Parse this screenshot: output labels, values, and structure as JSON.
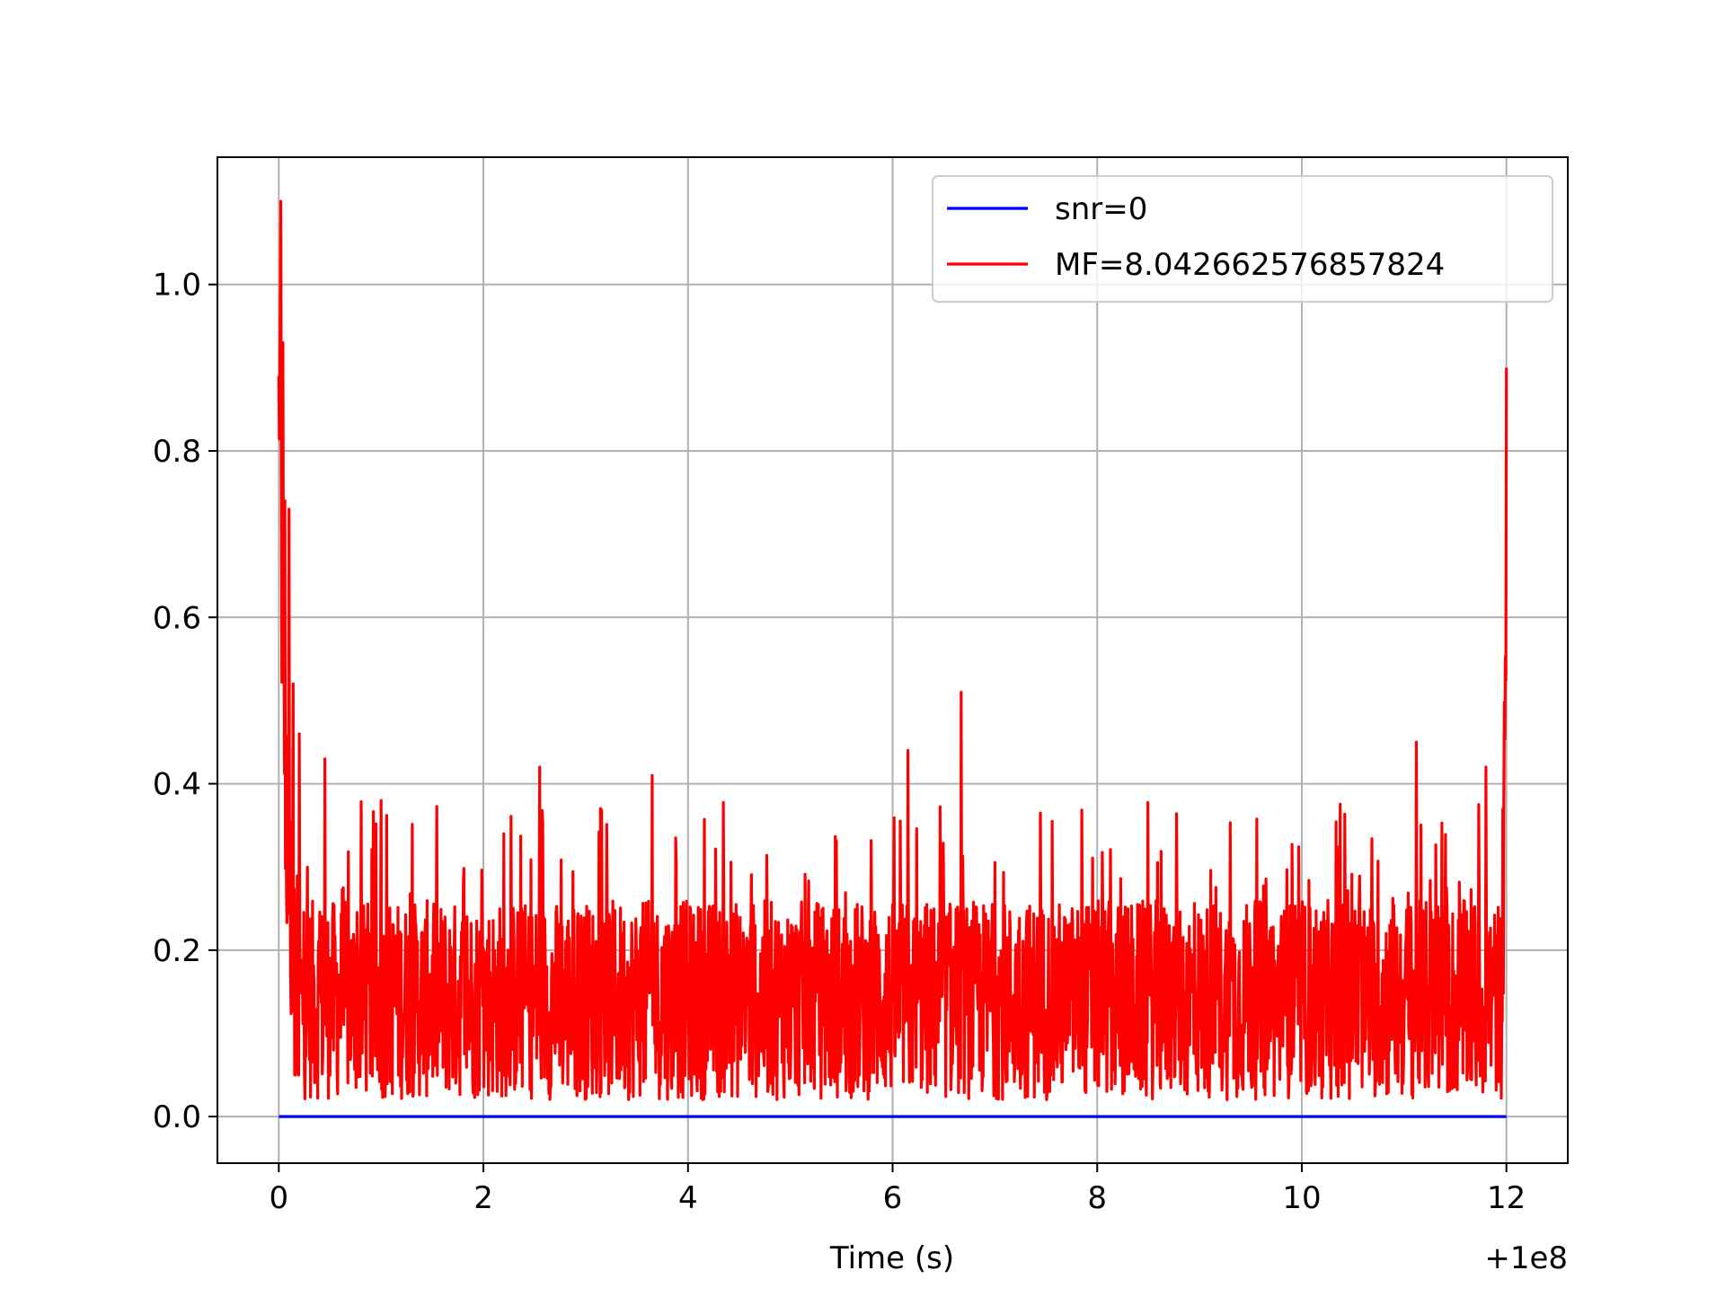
{
  "chart_data": {
    "type": "line",
    "title": "",
    "xlabel": "Time (s)",
    "ylabel": "",
    "x_offset_label": "+1e8",
    "xlim": [
      -0.6,
      12.6
    ],
    "ylim": [
      -0.056,
      1.153
    ],
    "xticks": [
      0,
      2,
      4,
      6,
      8,
      10,
      12
    ],
    "xtick_labels": [
      "0",
      "2",
      "4",
      "6",
      "8",
      "10",
      "12"
    ],
    "yticks": [
      0.0,
      0.2,
      0.4,
      0.6,
      0.8,
      1.0
    ],
    "ytick_labels": [
      "0.0",
      "0.2",
      "0.4",
      "0.6",
      "0.8",
      "1.0"
    ],
    "grid": true,
    "legend_position": "top-right",
    "series": [
      {
        "name": "snr=0",
        "color": "#0000ff",
        "x": [
          0,
          12
        ],
        "y": [
          0,
          0
        ]
      },
      {
        "name": "MF=8.042662576857824",
        "color": "#ff0000",
        "description_peaks": {
          "x": [
            0.0,
            0.02,
            0.04,
            0.06,
            0.1,
            0.14,
            0.2,
            0.45,
            1.0,
            2.55,
            3.65,
            6.15,
            6.67,
            11.12,
            11.8,
            11.98,
            12.0
          ],
          "y": [
            0.89,
            1.1,
            0.93,
            0.74,
            0.73,
            0.52,
            0.46,
            0.43,
            0.38,
            0.42,
            0.41,
            0.44,
            0.51,
            0.45,
            0.42,
            0.3,
            0.9
          ]
        },
        "noise_band": {
          "low": 0.0,
          "high": 0.3,
          "mean": 0.13
        }
      }
    ]
  }
}
